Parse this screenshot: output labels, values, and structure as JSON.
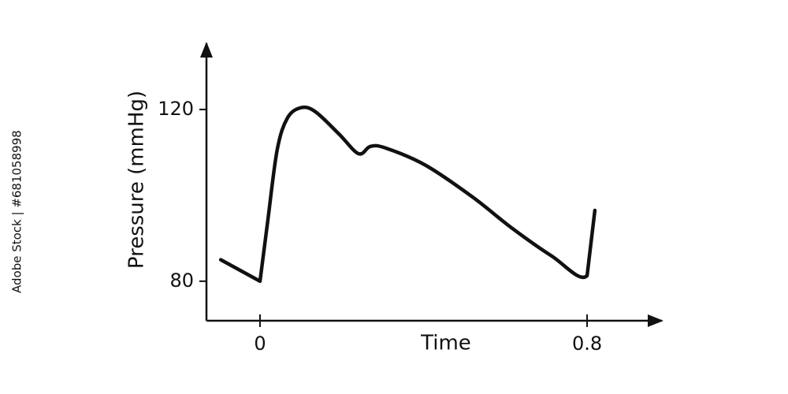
{
  "watermark": "Adobe Stock | #681058998",
  "chart_data": {
    "type": "line",
    "x_label": "Time",
    "y_label": "Pressure (mmHg)",
    "x": [
      -0.096,
      0,
      0.019,
      0.042,
      0.067,
      0.1,
      0.135,
      0.193,
      0.241,
      0.27,
      0.308,
      0.405,
      0.52,
      0.617,
      0.713,
      0.8,
      0.819
    ],
    "series": [
      {
        "color": "#111111",
        "values": [
          85,
          80,
          94.1,
          110.6,
          118,
          120.4,
          119.5,
          114.3,
          109.7,
          111.4,
          111,
          107,
          99.6,
          92.3,
          85.9,
          81.3,
          96.5
        ]
      }
    ],
    "xlim": [
      -0.131,
      0.983
    ],
    "ylim": [
      70.8,
      135.4
    ],
    "xticks": [
      0,
      0.8
    ],
    "yticks": [
      80,
      120
    ]
  }
}
